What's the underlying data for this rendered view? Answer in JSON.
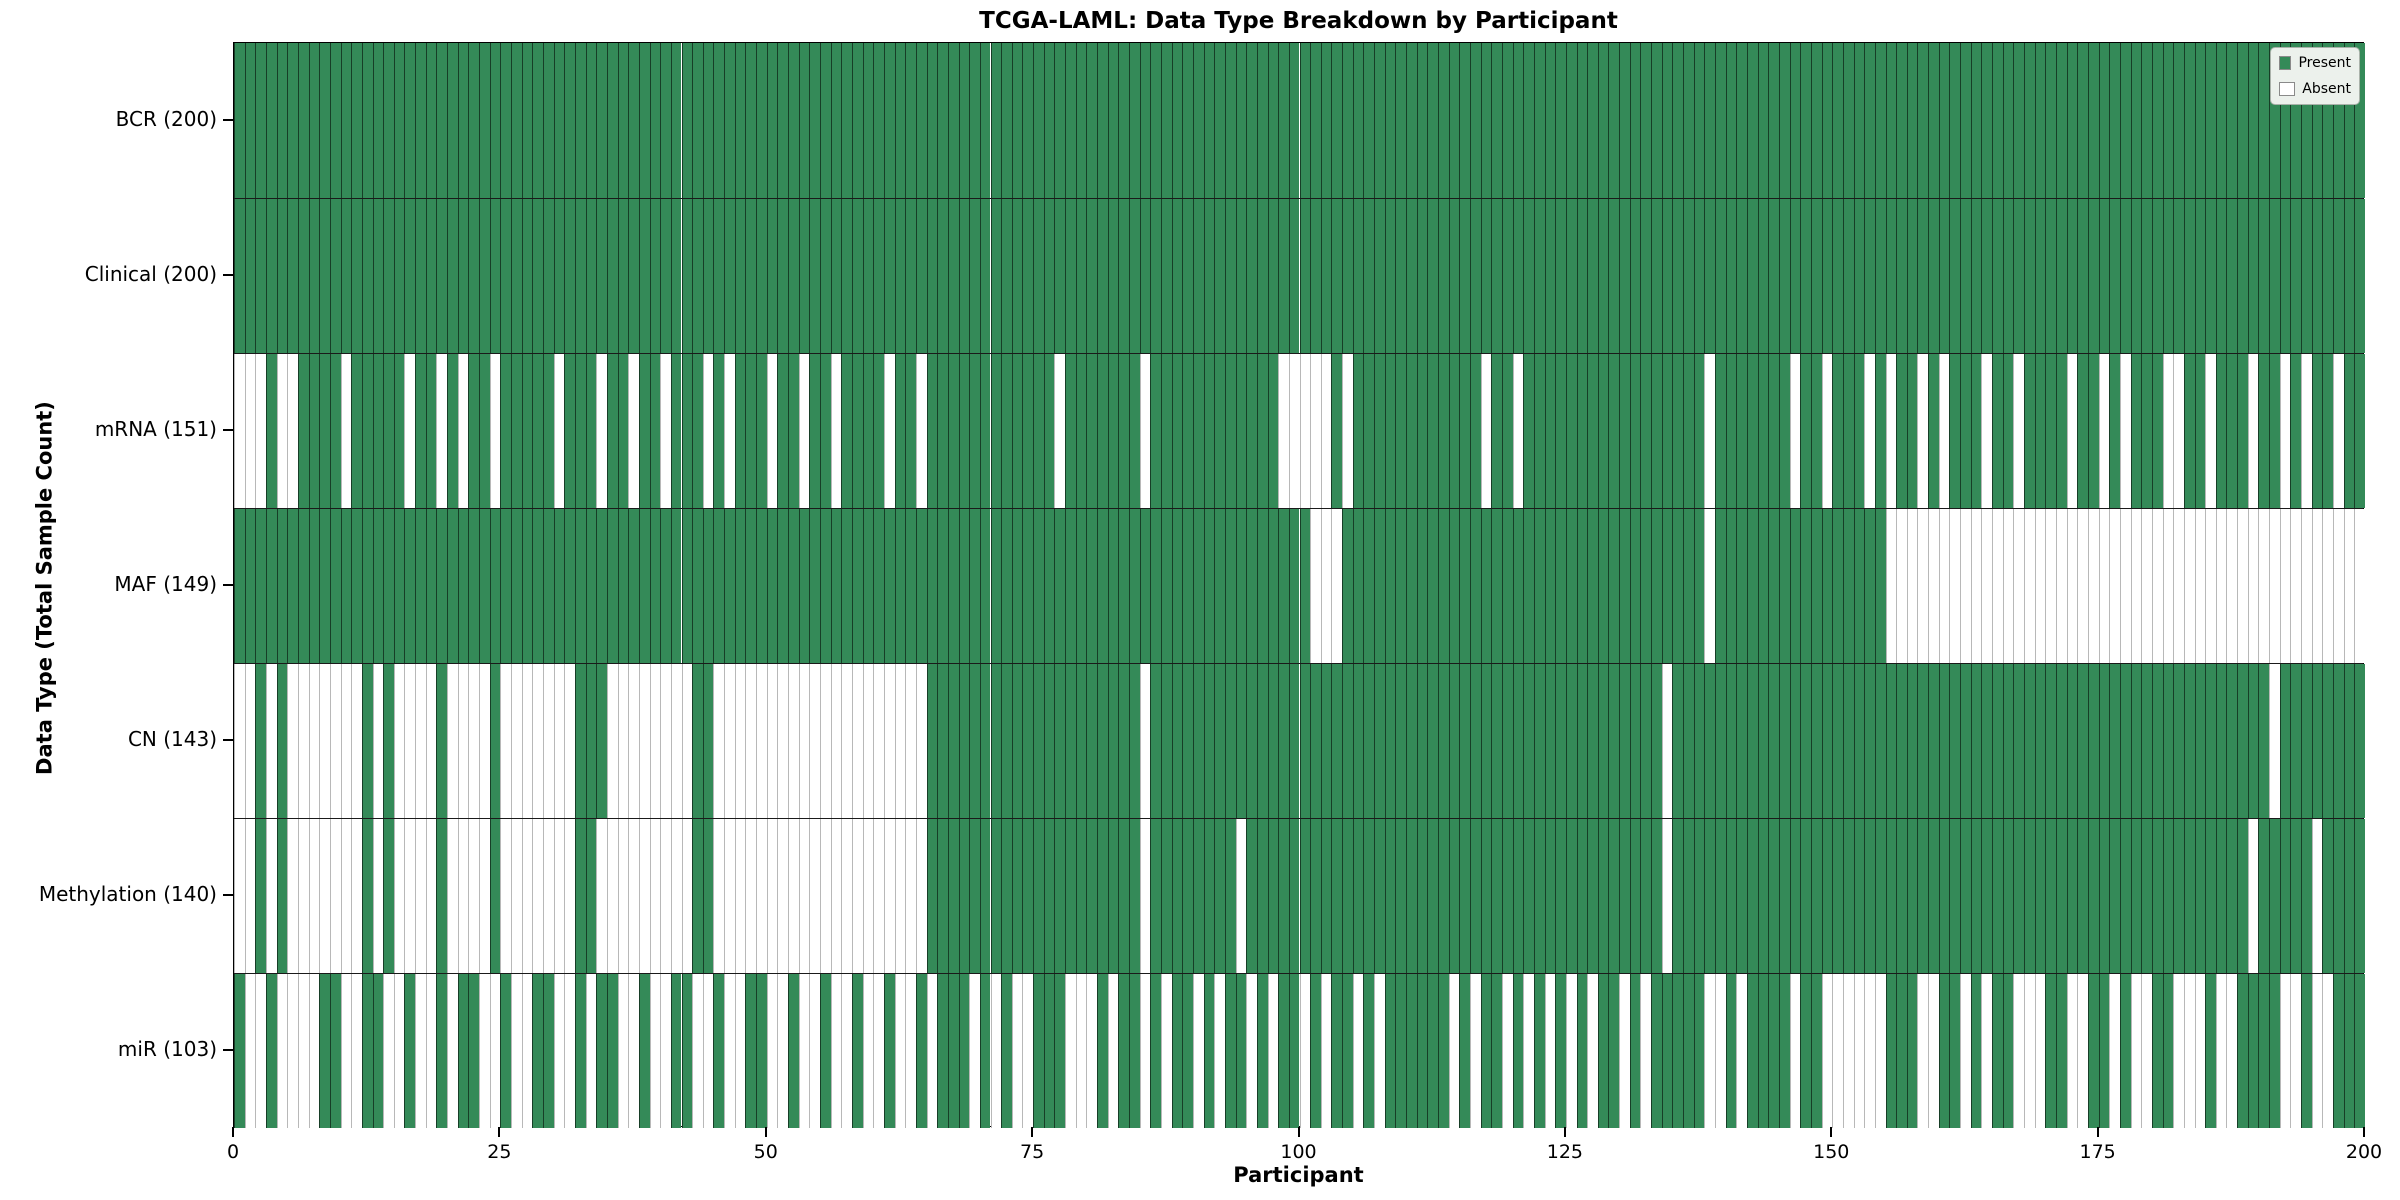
{
  "chart_data": {
    "type": "heatmap",
    "title": "TCGA-LAML: Data Type Breakdown by Participant",
    "xlabel": "Participant",
    "ylabel": "Data Type (Total Sample Count)",
    "x_range": [
      0,
      200
    ],
    "n_participants": 200,
    "x_ticks": [
      0,
      25,
      50,
      75,
      100,
      125,
      150,
      175,
      200
    ],
    "grid": "column-separators",
    "legend": {
      "position": "upper-right",
      "entries": [
        {
          "label": "Present",
          "color": "#348a58"
        },
        {
          "label": "Absent",
          "color": "#ffffff"
        }
      ]
    },
    "colors": {
      "present": "#348a58",
      "absent": "#ffffff",
      "present_edge": "rgba(0,0,0,0.55)",
      "absent_edge": "#b8b8b8",
      "row_divider": "#1a1a1a",
      "plot_border": "#000000",
      "legend_bg": "#ecf1ec"
    },
    "rows": [
      {
        "label": "BCR (200)",
        "name": "BCR",
        "present_count": 200,
        "bits": "11111111111111111111111111111111111111111111111111111111111111111111111111111111111111111111111111111111111111111111111111111111111111111111111111111111111111111111111111111111111111111111111111111111"
      },
      {
        "label": "Clinical (200)",
        "name": "Clinical",
        "present_count": 200,
        "bits": "11111111111111111111111111111111111111111111111111111111111111111111111111111111111111111111111111111111111111111111111111111111111111111111111111111111111111111111111111111111111111111111111111111111"
      },
      {
        "label": "mRNA (151)",
        "name": "mRNA",
        "present_count": 151,
        "bits": "00010011110111110110101101111101110110110111010111011011011110110111111111111011111110111111111111000001011111111111101101111111111111111101111111011011101011010111011011110110101110011011101101011011"
      },
      {
        "label": "MAF (149)",
        "name": "MAF",
        "present_count": 149,
        "bits": "11111111111111111111111111111111111111111111111111111111111111111111111111111111111111111111111111111000111111111111111111111111111111111101111111111111111000000000000000000000000000000000000000000000"
      },
      {
        "label": "CN (143)",
        "name": "CN",
        "present_count": 143,
        "bits": "00101000000010100001000010000000111000000001100000000000000000000111111111111111111110111111111111111111111111111111111111111111111111011111111111111111111111111111111111111111111111111111111011111111"
      },
      {
        "label": "Methylation (140)",
        "name": "Methylation",
        "present_count": 140,
        "bits": "00101000000010100001000010000000110000000001100000000000000000000111111111111111111110111111110111111111111111111111111111111111111111011111111111111111111111111111111111111111111111111111101111101111"
      },
      {
        "label": "miR (103)",
        "name": "miR",
        "present_count": 103,
        "bits": "10010000110011001001011001001100101100100110010011001001001001001011101010011100010110101101011010110101101011111101011010101010110101111100101111011000000111001101011000110011010011000100111100100111"
      }
    ]
  }
}
